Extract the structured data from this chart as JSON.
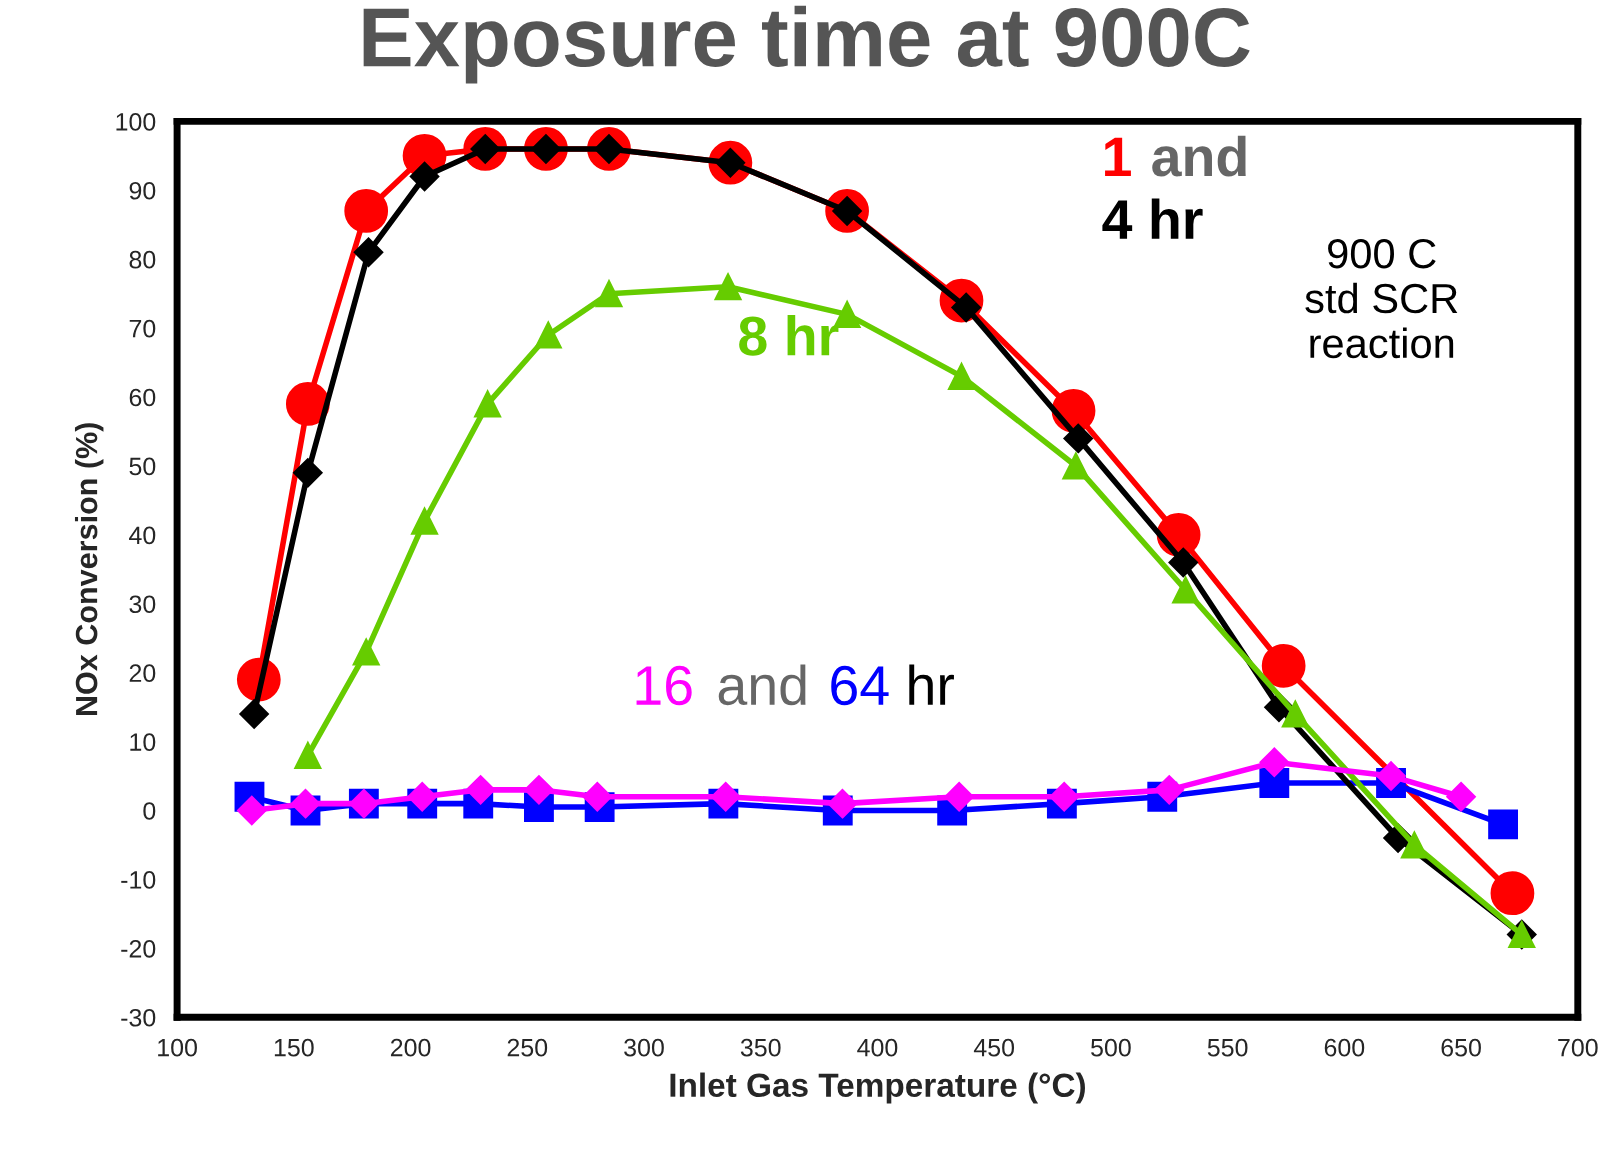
{
  "chart_data": {
    "type": "line",
    "title": "Exposure time at 900C",
    "xlabel": "Inlet Gas Temperature (°C)",
    "ylabel": "NOx Conversion (%)",
    "xlim": [
      100,
      700
    ],
    "xticks": [
      100,
      150,
      200,
      250,
      300,
      350,
      400,
      450,
      500,
      550,
      600,
      650,
      700
    ],
    "ylim": [
      -30,
      100
    ],
    "yticks": [
      -30,
      -20,
      -10,
      0,
      10,
      20,
      30,
      40,
      50,
      60,
      70,
      80,
      90,
      100
    ],
    "grid": false,
    "legend": false,
    "line_style": "solid",
    "series": [
      {
        "name": "1",
        "color": "#ff0000",
        "marker": "circle",
        "x": [
          135,
          156,
          181,
          206,
          232,
          258,
          285,
          337,
          387,
          436,
          484,
          529,
          574,
          672
        ],
        "values": [
          19,
          59,
          87,
          95,
          96,
          96,
          96,
          94,
          87,
          74,
          58,
          40,
          21,
          -12
        ]
      },
      {
        "name": "4 hr",
        "color": "#000000",
        "marker": "diamond",
        "x": [
          133,
          156,
          182,
          206,
          232,
          258,
          285,
          337,
          387,
          438,
          486,
          531,
          572,
          623,
          676
        ],
        "values": [
          14,
          49,
          81,
          92,
          96,
          96,
          96,
          94,
          87,
          73,
          54,
          36,
          15,
          -4,
          -18
        ]
      },
      {
        "name": "8 hr",
        "color": "#66cc00",
        "marker": "triangle",
        "x": [
          156,
          181,
          206,
          233,
          259,
          285,
          336,
          387,
          436,
          485,
          532,
          579,
          630,
          676
        ],
        "values": [
          8,
          23,
          42,
          59,
          69,
          75,
          76,
          72,
          63,
          50,
          32,
          14,
          -5,
          -18
        ]
      },
      {
        "name": "16",
        "color": "#ff00ff",
        "marker": "diamond",
        "x": [
          132,
          155,
          180,
          205,
          230,
          255,
          280,
          335,
          385,
          435,
          480,
          525,
          570,
          620,
          650
        ],
        "values": [
          0,
          1,
          1,
          2,
          3,
          3,
          2,
          2,
          1,
          2,
          2,
          3,
          7,
          5,
          2
        ]
      },
      {
        "name": "64",
        "color": "#0000ff",
        "marker": "square",
        "x": [
          131,
          155,
          180,
          205,
          229,
          255,
          281,
          334,
          383,
          432,
          479,
          522,
          570,
          620,
          668
        ],
        "values": [
          2,
          0,
          1,
          1,
          1,
          0.5,
          0.5,
          1,
          0,
          0,
          1,
          2,
          4,
          4,
          -2
        ]
      }
    ],
    "annotations": [
      "and",
      "and",
      "hr",
      "900 C\nstd SCR\nreaction"
    ]
  }
}
